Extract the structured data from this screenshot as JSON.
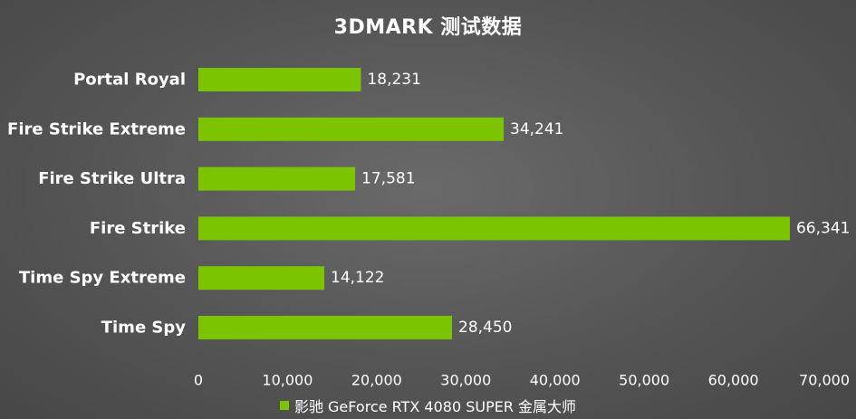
{
  "chart_data": {
    "type": "bar",
    "orientation": "horizontal",
    "title": "3DMARK 测试数据",
    "categories": [
      "Portal Royal",
      "Fire Strike Extreme",
      "Fire Strike Ultra",
      "Fire Strike",
      "Time Spy Extreme",
      "Time Spy"
    ],
    "series": [
      {
        "name": "影驰 GeForce RTX 4080 SUPER 金属大师",
        "values": [
          18231,
          34241,
          17581,
          66341,
          14122,
          28450
        ],
        "value_labels": [
          "18,231",
          "34,241",
          "17,581",
          "66,341",
          "14,122",
          "28,450"
        ],
        "color": "#7dc400"
      }
    ],
    "xlim": [
      0,
      70000
    ],
    "xticks": [
      0,
      10000,
      20000,
      30000,
      40000,
      50000,
      60000,
      70000
    ],
    "xtick_labels": [
      "0",
      "10,000",
      "20,000",
      "30,000",
      "40,000",
      "50,000",
      "60,000",
      "70,000"
    ],
    "grid": false,
    "legend": "bottom"
  },
  "colors": {
    "background": "#555555",
    "bar": "#7dc400",
    "text": "#ffffff"
  }
}
